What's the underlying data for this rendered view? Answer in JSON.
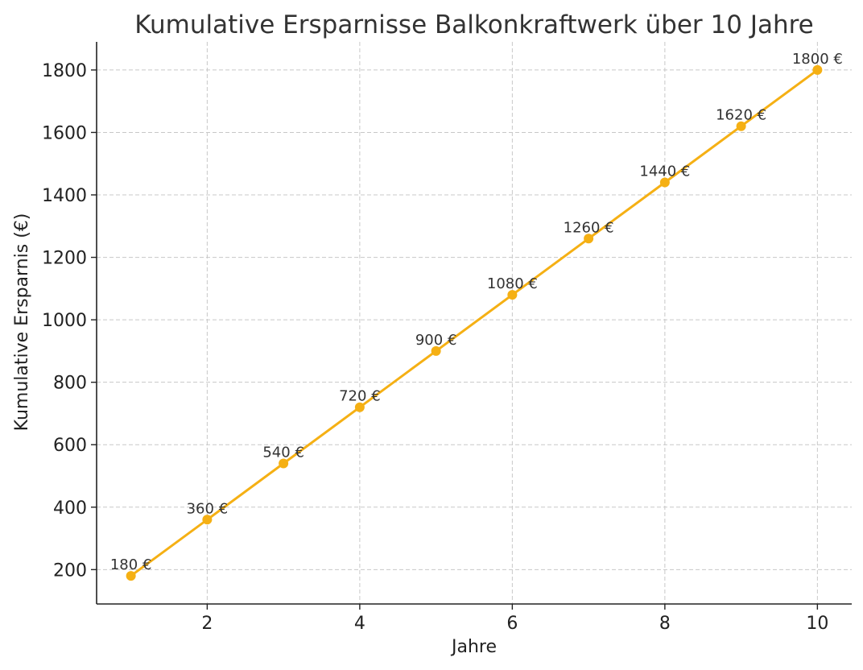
{
  "chart_data": {
    "type": "line",
    "title": "Kumulative Ersparnisse Balkonkraftwerk über 10 Jahre",
    "xlabel": "Jahre",
    "ylabel": "Kumulative Ersparnis (€)",
    "x": [
      1,
      2,
      3,
      4,
      5,
      6,
      7,
      8,
      9,
      10
    ],
    "series": [
      {
        "values": [
          180,
          360,
          540,
          720,
          900,
          1080,
          1260,
          1440,
          1620,
          1800
        ],
        "color": "#f5b014",
        "data_labels": [
          "180 €",
          "360 €",
          "540 €",
          "720 €",
          "900 €",
          "1080 €",
          "1260 €",
          "1440 €",
          "1620 €",
          "1800 €"
        ]
      }
    ],
    "xlim": [
      0.55,
      10.45
    ],
    "ylim": [
      90,
      1890
    ],
    "xticks": [
      2,
      4,
      6,
      8,
      10
    ],
    "yticks": [
      200,
      400,
      600,
      800,
      1000,
      1200,
      1400,
      1600,
      1800
    ],
    "grid": true
  }
}
